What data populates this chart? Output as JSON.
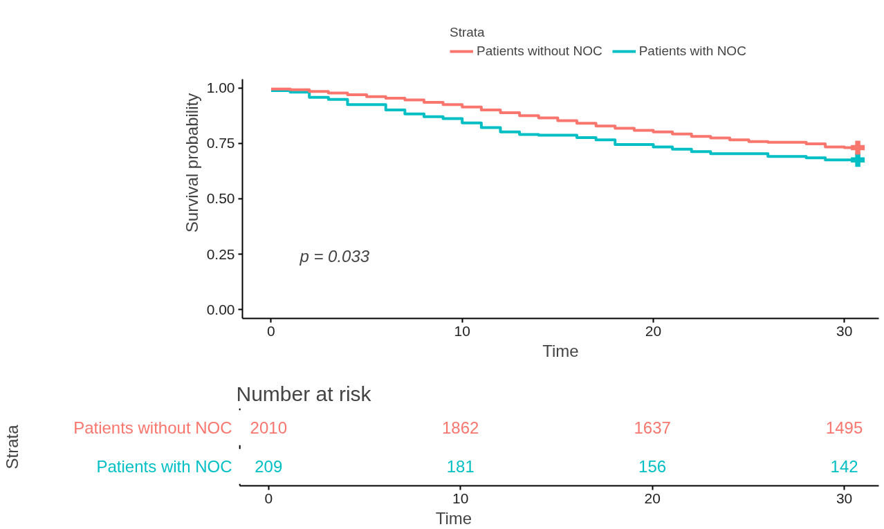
{
  "chart_data": [
    {
      "type": "step",
      "xlabel": "Time",
      "ylabel": "Survival probability",
      "legend_title": "Strata",
      "legend": "top",
      "xlim": [
        -1.5,
        31.8
      ],
      "xticks": [
        0,
        10,
        20,
        30
      ],
      "ylim": [
        -0.04,
        1.04
      ],
      "yticks": [
        {
          "value": 0,
          "label": "0.00"
        },
        0.25,
        {
          "value": 0.5,
          "label": "0.50"
        },
        0.75,
        {
          "value": 1,
          "label": "1.00"
        }
      ],
      "annotations": [
        "p = 0.033"
      ],
      "series": [
        {
          "name": "Patients without NOC",
          "color": "#f8766d",
          "x": [
            0,
            1,
            2,
            3,
            4,
            5,
            6,
            7,
            8,
            9,
            10,
            11,
            12,
            13,
            14,
            15,
            16,
            17,
            18,
            19,
            20,
            21,
            22,
            23,
            24,
            25,
            26,
            28,
            29,
            30,
            30.7
          ],
          "values": [
            0.995,
            0.992,
            0.984,
            0.977,
            0.969,
            0.961,
            0.954,
            0.946,
            0.935,
            0.925,
            0.914,
            0.901,
            0.888,
            0.875,
            0.865,
            0.852,
            0.841,
            0.828,
            0.818,
            0.809,
            0.802,
            0.792,
            0.781,
            0.774,
            0.766,
            0.758,
            0.755,
            0.748,
            0.734,
            0.731,
            0.731
          ]
        },
        {
          "name": "Patients with NOC",
          "color": "#00bfc4",
          "x": [
            0,
            1,
            2,
            3,
            4,
            6,
            7,
            8,
            9,
            10,
            11,
            12,
            13,
            14,
            16,
            17,
            18,
            20,
            21,
            22,
            23,
            26,
            28,
            29,
            30.7
          ],
          "values": [
            0.988,
            0.981,
            0.958,
            0.948,
            0.925,
            0.901,
            0.883,
            0.87,
            0.862,
            0.842,
            0.821,
            0.802,
            0.79,
            0.787,
            0.776,
            0.766,
            0.745,
            0.734,
            0.724,
            0.713,
            0.703,
            0.691,
            0.685,
            0.675,
            0.675
          ]
        },
        {
          "type": "scatter",
          "marker": "cross",
          "color": "#f8766d",
          "x": [
            30.7
          ],
          "values": [
            0.731
          ]
        },
        {
          "type": "scatter",
          "marker": "cross",
          "color": "#00bfc4",
          "x": [
            30.7
          ],
          "values": [
            0.675
          ]
        }
      ]
    },
    {
      "type": "heatmap",
      "title": "Number at risk",
      "xlabel": "Time",
      "ylabel": "Strata",
      "data_labels": true,
      "categories": [
        "0",
        "10",
        "20",
        "30"
      ],
      "y_categories": [
        "Patients without NOC",
        "Patients with NOC"
      ],
      "colors": [
        "#f8766d",
        "#00bfc4"
      ],
      "cells": [
        [
          2010,
          1862,
          1637,
          1495
        ],
        [
          209,
          181,
          156,
          142
        ]
      ]
    }
  ]
}
